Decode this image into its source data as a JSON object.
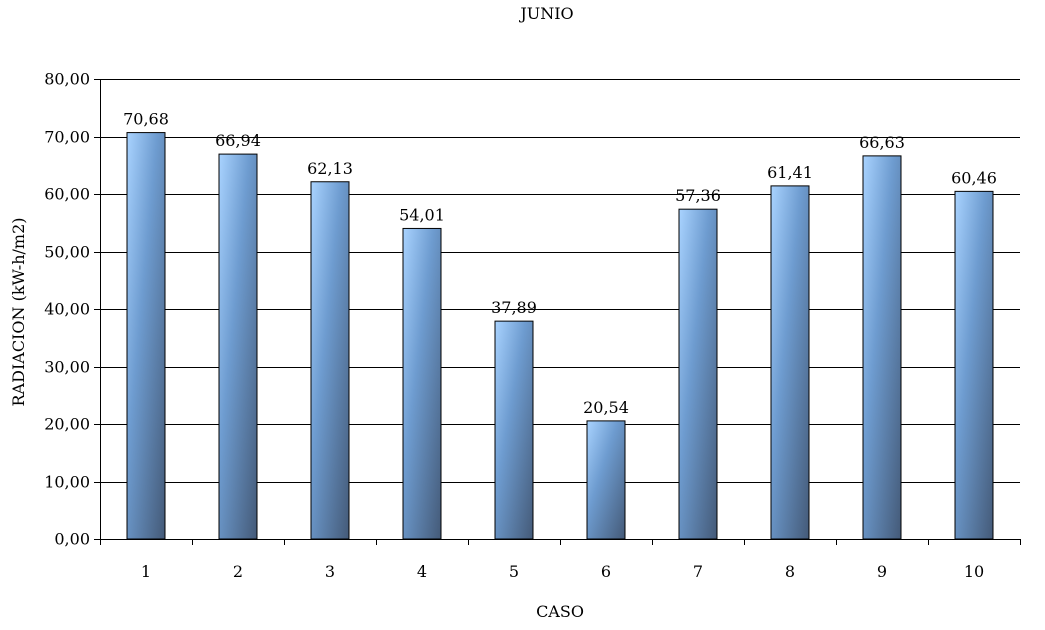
{
  "chart_data": {
    "type": "bar",
    "title": "JUNIO",
    "xlabel": "CASO",
    "ylabel": "RADIACION (kW-h/m2)",
    "categories": [
      "1",
      "2",
      "3",
      "4",
      "5",
      "6",
      "7",
      "8",
      "9",
      "10"
    ],
    "values": [
      70.68,
      66.94,
      62.13,
      54.01,
      37.89,
      20.54,
      57.36,
      61.41,
      66.63,
      60.46
    ],
    "data_labels": [
      "70,68",
      "66,94",
      "62,13",
      "54,01",
      "37,89",
      "20,54",
      "57,36",
      "61,41",
      "66,63",
      "60,46"
    ],
    "ylim": [
      0,
      80
    ],
    "yticks": [
      0,
      10,
      20,
      30,
      40,
      50,
      60,
      70,
      80
    ],
    "ytick_labels": [
      "0,00",
      "10,00",
      "20,00",
      "30,00",
      "40,00",
      "50,00",
      "60,00",
      "70,00",
      "80,00"
    ],
    "grid": true,
    "legend": "none",
    "colors": {
      "bar_light": "#a9d3ff",
      "bar_mid": "#6e9cd0",
      "bar_dark": "#445a78",
      "grid": "#000000",
      "axis": "#000000"
    }
  }
}
